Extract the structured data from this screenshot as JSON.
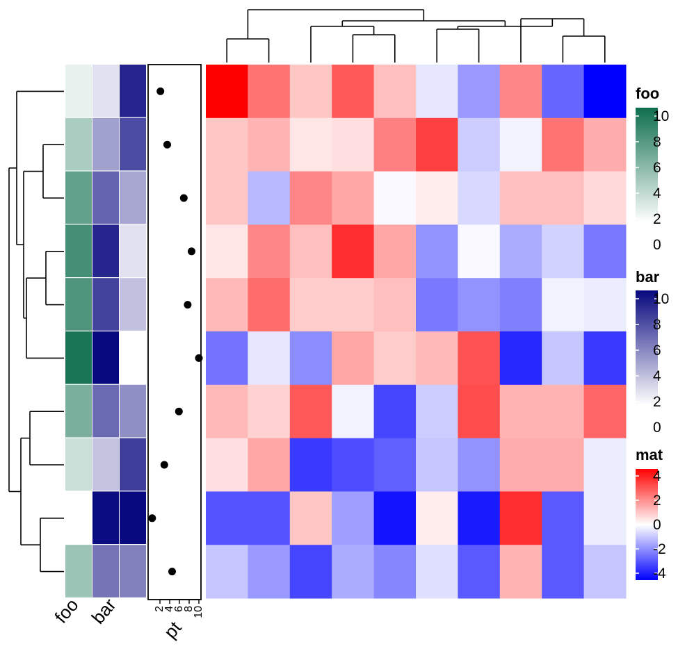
{
  "chart_data": {
    "type": "heatmap",
    "title": "",
    "rows": 10,
    "cols": 10,
    "matrix": [
      [
        4.2,
        2.2,
        0.9,
        2.6,
        1.0,
        -0.4,
        -1.6,
        1.9,
        -2.4,
        -4.0
      ],
      [
        0.9,
        1.2,
        0.4,
        0.5,
        2.0,
        3.0,
        -0.8,
        -0.2,
        2.2,
        1.3
      ],
      [
        0.9,
        -1.1,
        1.9,
        1.4,
        -0.1,
        0.3,
        -0.6,
        1.0,
        1.0,
        0.6
      ],
      [
        0.4,
        1.9,
        1.0,
        3.3,
        1.4,
        -1.7,
        -0.1,
        -1.3,
        -0.7,
        -2.1
      ],
      [
        1.1,
        2.3,
        0.8,
        0.8,
        1.0,
        -2.1,
        -1.7,
        -2.0,
        -0.2,
        -0.3
      ],
      [
        -2.2,
        -0.4,
        -1.8,
        1.4,
        0.8,
        1.1,
        2.7,
        -3.4,
        -0.9,
        -3.1
      ],
      [
        1.1,
        0.7,
        2.6,
        -0.2,
        -2.9,
        -0.8,
        2.8,
        1.2,
        1.2,
        2.4
      ],
      [
        0.5,
        1.4,
        -3.1,
        -2.8,
        -2.5,
        -0.9,
        -1.7,
        1.3,
        1.3,
        -0.3
      ],
      [
        -2.7,
        -2.7,
        0.9,
        -1.5,
        -3.7,
        0.3,
        -3.6,
        3.3,
        -2.6,
        -0.3
      ],
      [
        -0.9,
        -1.6,
        -2.9,
        -1.3,
        -1.9,
        -0.5,
        -2.6,
        1.2,
        -2.6,
        -0.9
      ]
    ],
    "row_annotations": {
      "foo": [
        1,
        3.5,
        6.5,
        7.7,
        7.3,
        9.5,
        5.5,
        2.2,
        0,
        4.1
      ],
      "bar": [
        1.2,
        3.8,
        6.2,
        8.8,
        7.6,
        10,
        6,
        2.4,
        9.8,
        5.6
      ],
      "pt": [
        2.1,
        3.5,
        6.9,
        8.5,
        7.7,
        10,
        5.9,
        2.9,
        0.4,
        4.5
      ],
      "pt_in_block_right": [
        8.8,
        7.2,
        3.6,
        1.2,
        2.5,
        0,
        4.5,
        7.8,
        9.9,
        5.1
      ]
    },
    "annotation_column_labels": [
      "foo",
      "bar",
      "pt"
    ],
    "pt_axis_ticks": [
      "2",
      "4",
      "6",
      "8",
      "10"
    ],
    "pt_axis_label": "pt",
    "legends": [
      {
        "title": "foo",
        "ticks": [
          "10",
          "8",
          "6",
          "4",
          "2",
          "0"
        ],
        "colors": [
          "#ffffff",
          "#0e6e4e"
        ]
      },
      {
        "title": "bar",
        "ticks": [
          "10",
          "8",
          "6",
          "4",
          "2",
          "0"
        ],
        "colors": [
          "#ffffff",
          "#07077e"
        ]
      },
      {
        "title": "mat",
        "ticks": [
          "4",
          "2",
          "0",
          "-2",
          "-4"
        ],
        "colors": [
          "#0000ff",
          "#ffffff",
          "#ff0000"
        ]
      }
    ],
    "column_dendrogram": "((c1,c2),((c3,(c4,c5)),((c6,c7),(c8,(c9,c10)))))",
    "row_dendrogram": "((r1,((r2,r3),((r4,r5),r6))),((r7,r8),(r9,r10)))",
    "color_scale": {
      "low": "#0000ff",
      "mid": "#ffffff",
      "high": "#ff0000",
      "range": [
        -4,
        4
      ]
    }
  }
}
